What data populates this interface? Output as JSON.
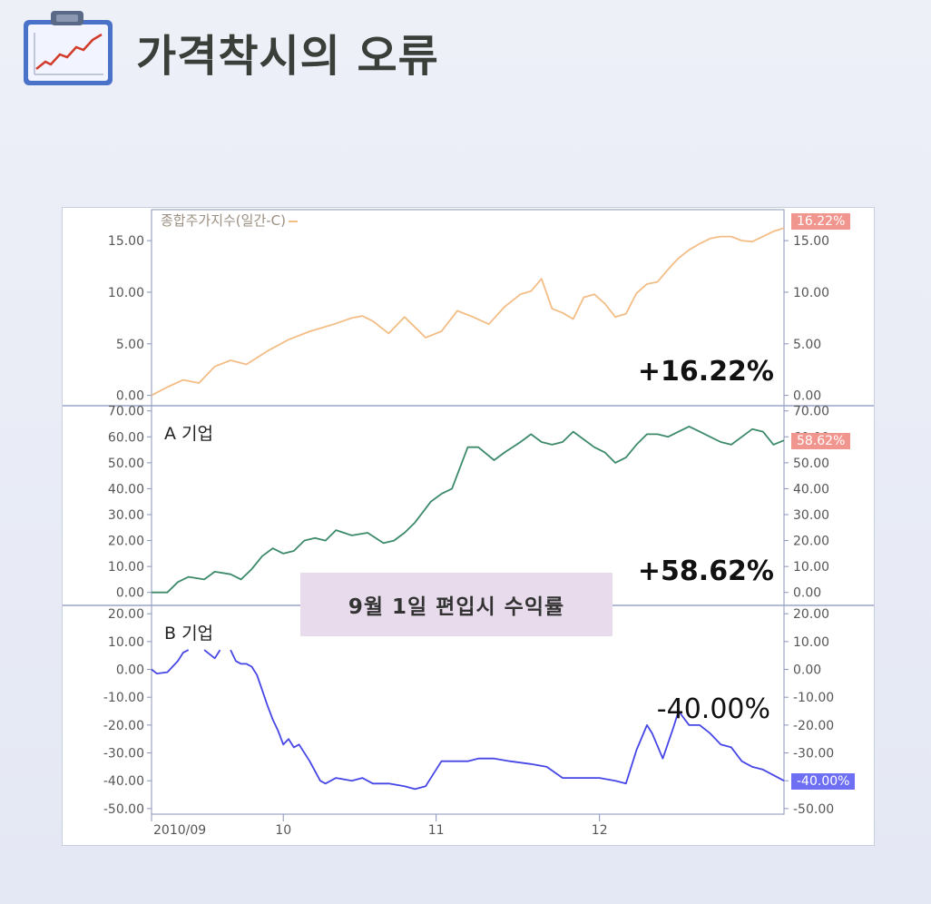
{
  "slide": {
    "title": "가격착시의 오류",
    "icon": "chart-clipboard-icon"
  },
  "overlay_label": "9월 1일 편입시 수익률",
  "chart_data": [
    {
      "type": "line",
      "panel": "index",
      "legend": "종합주가지수(일간-C)",
      "color": "#f3bd86",
      "ylim": [
        -1,
        18
      ],
      "yticks": [
        15,
        10,
        5,
        0
      ],
      "ytick_labels": [
        "15.00",
        "10.00",
        "5.00",
        "0.00"
      ],
      "return_label": "+16.22%",
      "badge": "16.22%",
      "badge_color": "#f1958f",
      "x": [
        0,
        3,
        6,
        9,
        12,
        15,
        18,
        22,
        26,
        30,
        34,
        38,
        40,
        42,
        45,
        48,
        52,
        55,
        58,
        61,
        64,
        67,
        70,
        72,
        74,
        76,
        78,
        80,
        82,
        84,
        86,
        88,
        90,
        92,
        94,
        96,
        98,
        100,
        102,
        104,
        106,
        108,
        110,
        112,
        114,
        116,
        118,
        120
      ],
      "values": [
        0,
        0.8,
        1.5,
        1.2,
        2.8,
        3.4,
        3.0,
        4.3,
        5.4,
        6.2,
        6.8,
        7.5,
        7.7,
        7.2,
        6.0,
        7.6,
        5.6,
        6.2,
        8.2,
        7.6,
        6.9,
        8.6,
        9.8,
        10.1,
        11.3,
        8.4,
        8.0,
        7.4,
        9.5,
        9.8,
        8.9,
        7.6,
        7.9,
        9.9,
        10.8,
        11.0,
        12.2,
        13.3,
        14.1,
        14.7,
        15.2,
        15.4,
        15.4,
        15.0,
        14.9,
        15.4,
        15.9,
        16.22
      ]
    },
    {
      "type": "line",
      "panel": "A",
      "series_label": "A 기업",
      "color": "#3c8a6a",
      "ylim": [
        -5,
        72
      ],
      "yticks": [
        70,
        60,
        50,
        40,
        30,
        20,
        10,
        0
      ],
      "ytick_labels": [
        "70.00",
        "60.00",
        "50.00",
        "40.00",
        "30.00",
        "20.00",
        "10.00",
        "0.00"
      ],
      "return_label": "+58.62%",
      "badge": "58.62%",
      "badge_color": "#f1958f",
      "x": [
        0,
        3,
        5,
        7,
        10,
        12,
        15,
        17,
        19,
        21,
        23,
        25,
        27,
        29,
        31,
        33,
        35,
        38,
        41,
        44,
        46,
        48,
        50,
        53,
        55,
        57,
        60,
        62,
        65,
        67,
        70,
        72,
        74,
        76,
        78,
        80,
        82,
        84,
        86,
        88,
        90,
        92,
        94,
        96,
        98,
        100,
        102,
        104,
        106,
        108,
        110,
        112,
        114,
        116,
        118,
        120
      ],
      "values": [
        0,
        0,
        4,
        6,
        5,
        8,
        7,
        5,
        9,
        14,
        17,
        15,
        16,
        20,
        21,
        20,
        24,
        22,
        23,
        19,
        20,
        23,
        27,
        35,
        38,
        40,
        56,
        56,
        51,
        54,
        58,
        61,
        58,
        57,
        58,
        62,
        59,
        56,
        54,
        50,
        52,
        57,
        61,
        61,
        60,
        62,
        64,
        62,
        60,
        58,
        57,
        60,
        63,
        62,
        57,
        58.62
      ]
    },
    {
      "type": "line",
      "panel": "B",
      "series_label": "B 기업",
      "color": "#4646e6",
      "ylim": [
        -52,
        23
      ],
      "yticks": [
        20,
        10,
        0,
        -10,
        -20,
        -30,
        -40,
        -50
      ],
      "ytick_labels": [
        "20.00",
        "10.00",
        "0.00",
        "-10.00",
        "-20.00",
        "-30.00",
        "-40.00",
        "-50.00"
      ],
      "return_label": "-40.00%",
      "badge": "-40.00%",
      "badge_color": "#6f6ff3",
      "segments": [
        {
          "x": [
            0,
            1,
            3,
            4,
            5,
            6,
            7
          ],
          "values": [
            0,
            -1.5,
            -1,
            1,
            3,
            6,
            7
          ]
        },
        {
          "x": [
            10,
            12,
            13
          ],
          "values": [
            7,
            4,
            7
          ]
        },
        {
          "x": [
            15,
            16,
            17,
            18,
            19,
            20,
            22,
            23,
            24,
            25,
            26,
            27,
            28,
            30,
            32,
            33,
            35,
            38,
            40,
            42,
            45,
            48,
            50,
            52,
            55,
            57,
            60,
            62,
            65,
            68,
            72,
            75,
            78,
            82,
            85,
            88,
            90,
            92,
            94,
            95,
            97,
            99,
            100,
            102,
            104,
            106,
            108,
            110,
            112,
            114,
            116,
            118,
            120
          ],
          "values": [
            7,
            3,
            2,
            2,
            1,
            -2,
            -13,
            -18,
            -22,
            -27,
            -25,
            -28,
            -27,
            -33,
            -40,
            -41,
            -39,
            -40,
            -39,
            -41,
            -41,
            -42,
            -43,
            -42,
            -33,
            -33,
            -33,
            -32,
            -32,
            -33,
            -34,
            -35,
            -39,
            -39,
            -39,
            -40,
            -41,
            -29,
            -20,
            -23,
            -32,
            -21,
            -15,
            -20,
            -20,
            -23,
            -27,
            -28,
            -33,
            -35,
            -36,
            -38,
            -40
          ]
        }
      ]
    }
  ],
  "x_axis": {
    "ticks": [
      0,
      25,
      54,
      85
    ],
    "labels": [
      "2010/09",
      "10",
      "11",
      "12"
    ]
  }
}
